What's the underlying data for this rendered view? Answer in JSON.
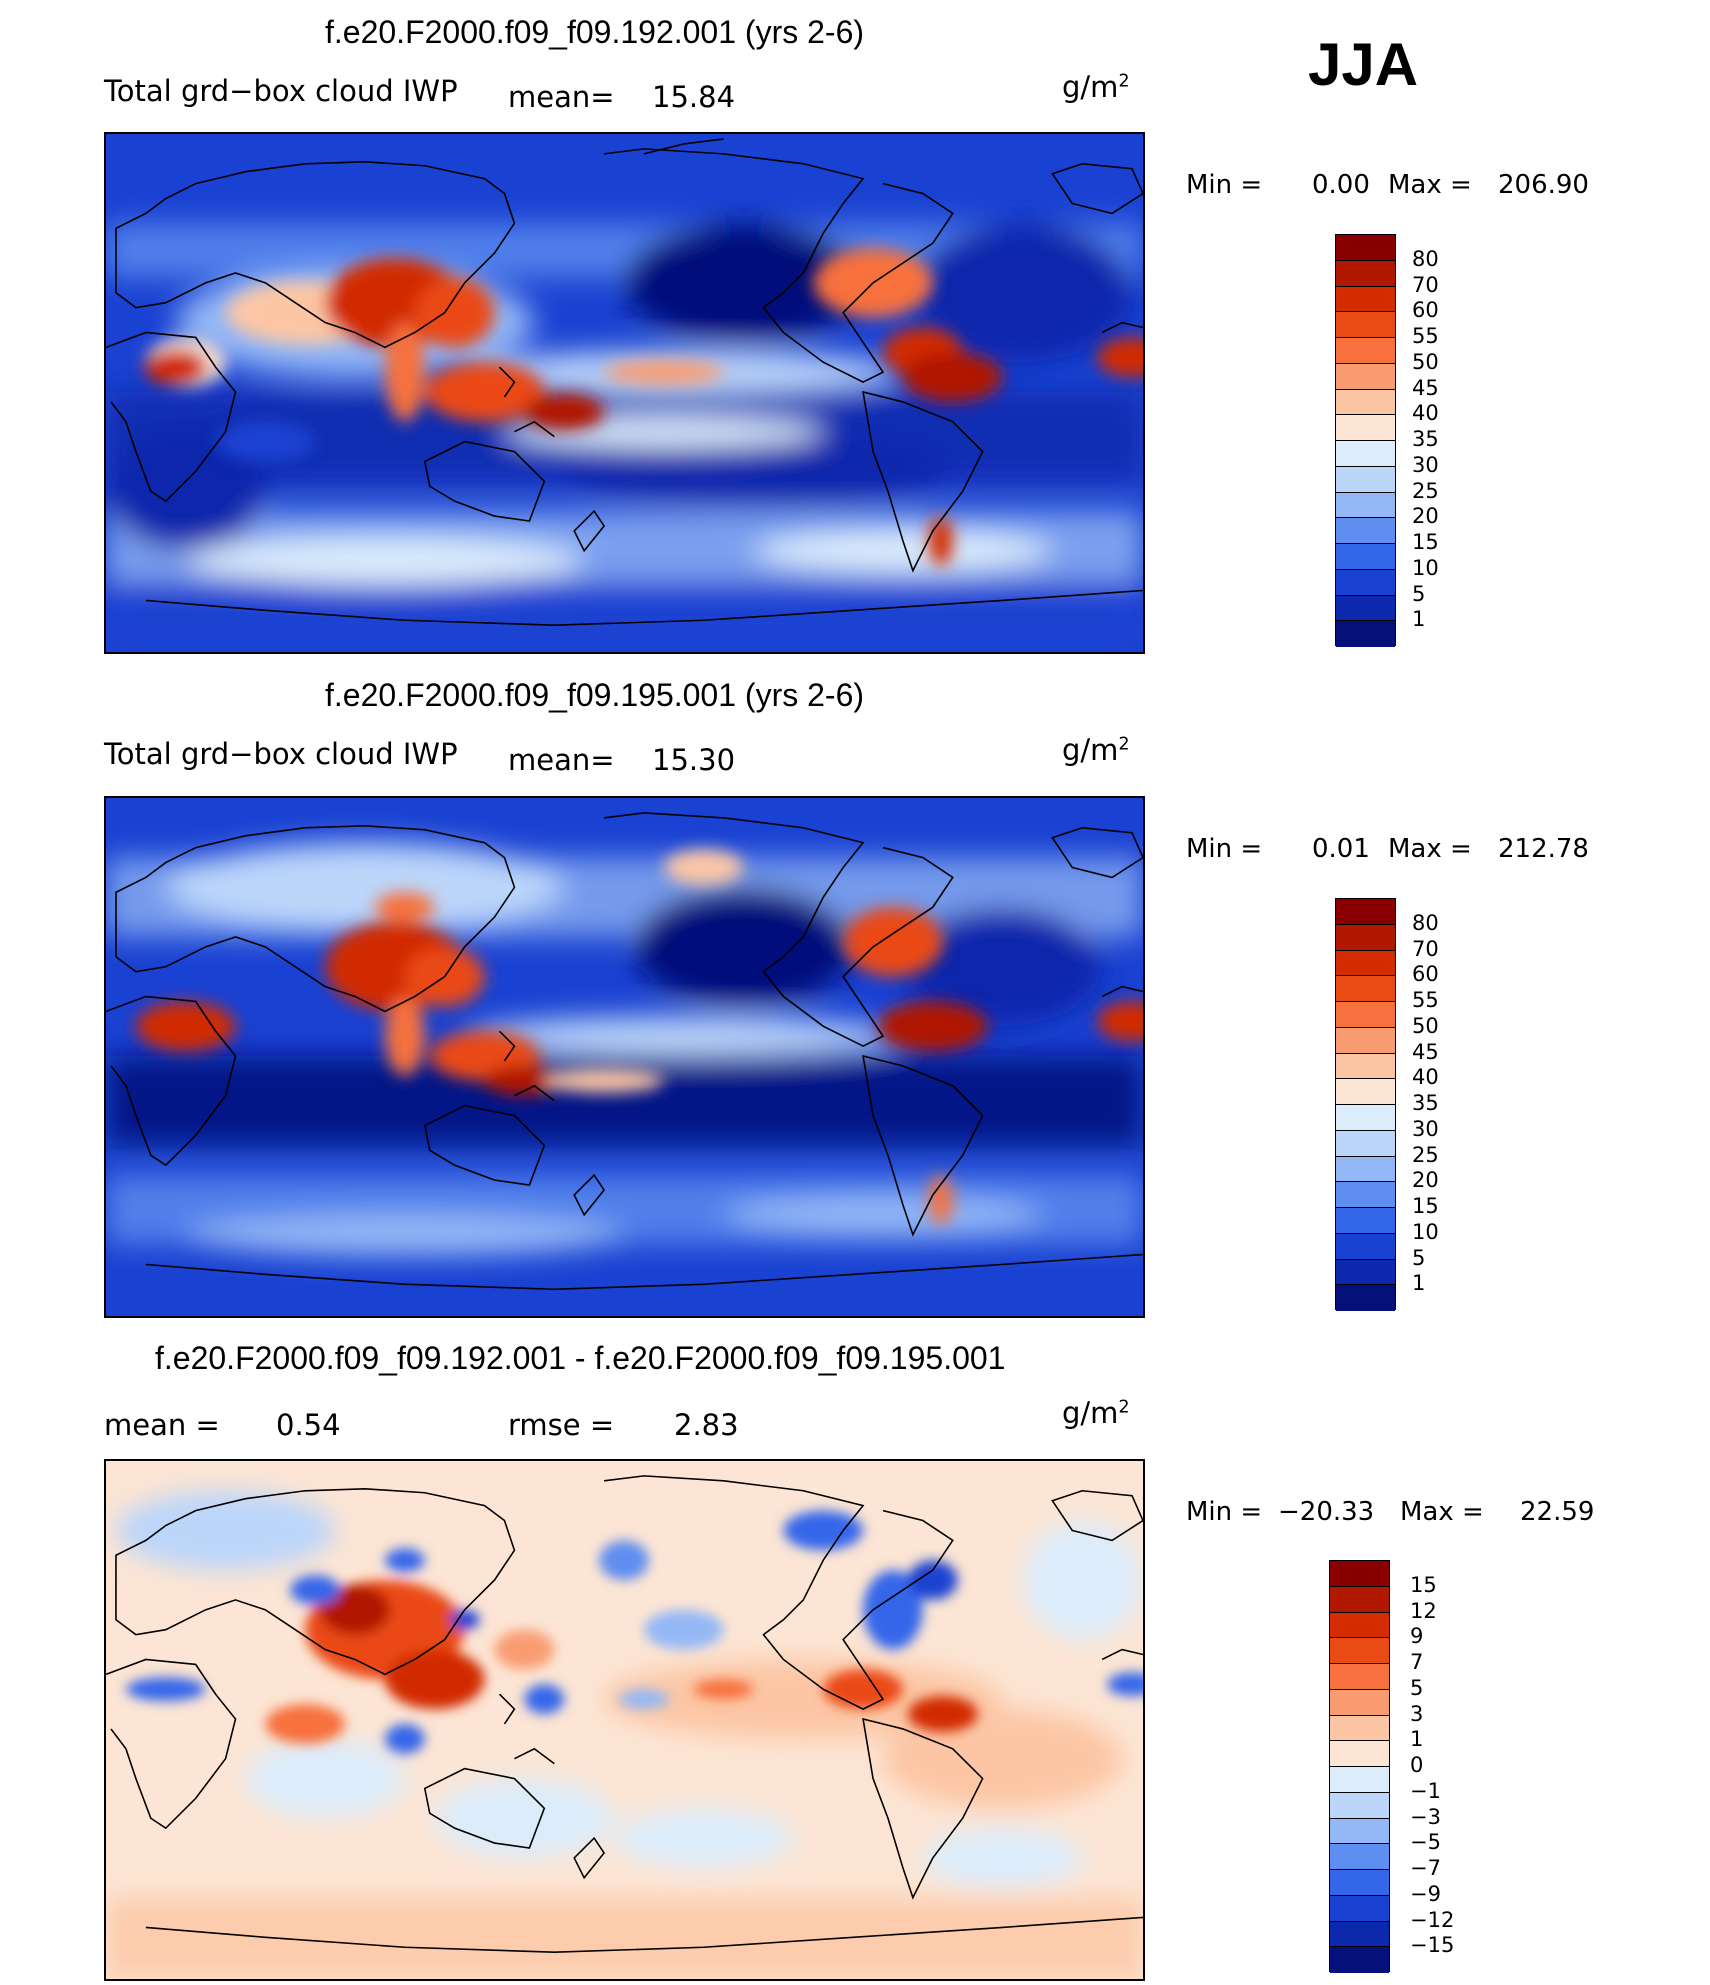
{
  "season": "JJA",
  "units_base": "g/m",
  "units_exp": "2",
  "panels": [
    {
      "title": "f.e20.F2000.f09_f09.192.001 (yrs 2-6)",
      "variable": "Total grd−box cloud IWP",
      "mean_label": "mean=",
      "mean_value": "15.84",
      "min_label": "Min  =",
      "min_value": "0.00",
      "max_label": "Max  =",
      "max_value": "206.90"
    },
    {
      "title": "f.e20.F2000.f09_f09.195.001 (yrs 2-6)",
      "variable": "Total grd−box cloud IWP",
      "mean_label": "mean=",
      "mean_value": "15.30",
      "min_label": "Min  =",
      "min_value": "0.01",
      "max_label": "Max  =",
      "max_value": "212.78"
    },
    {
      "title": "f.e20.F2000.f09_f09.192.001 - f.e20.F2000.f09_f09.195.001",
      "mean_label": "mean  =",
      "mean_value": "0.54",
      "rmse_label": "rmse  =",
      "rmse_value": "2.83",
      "min_label": "Min  =",
      "min_value": "−20.33",
      "max_label": "Max  =",
      "max_value": "22.59"
    }
  ],
  "colorbars": {
    "field": {
      "labels": [
        "80",
        "70",
        "60",
        "55",
        "50",
        "45",
        "40",
        "35",
        "30",
        "25",
        "20",
        "15",
        "10",
        "5",
        "1"
      ],
      "colors": [
        "#8a0000",
        "#b01800",
        "#d22c00",
        "#ea4a14",
        "#f7713e",
        "#fa9c72",
        "#fcc6a4",
        "#fce5d4",
        "#dcecfb",
        "#bcd6fa",
        "#94b8f6",
        "#5e8ef0",
        "#3466ea",
        "#1a42d2",
        "#0c28ac",
        "#05107a"
      ]
    },
    "diff": {
      "labels": [
        "15",
        "12",
        "9",
        "7",
        "5",
        "3",
        "1",
        "0",
        "−1",
        "−3",
        "−5",
        "−7",
        "−9",
        "−12",
        "−15"
      ],
      "colors": [
        "#8a0000",
        "#b01800",
        "#d22c00",
        "#ea4a14",
        "#f7713e",
        "#fa9c72",
        "#fcc6a4",
        "#fce5d4",
        "#dcecfb",
        "#bcd6fa",
        "#94b8f6",
        "#5e8ef0",
        "#3466ea",
        "#1a42d2",
        "#0c28ac",
        "#05107a"
      ]
    }
  }
}
